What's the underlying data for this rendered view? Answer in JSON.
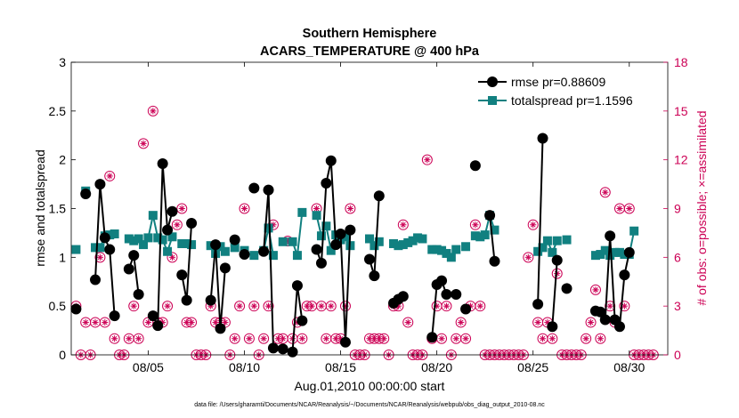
{
  "chart_data": {
    "type": "line",
    "title": [
      "Southern Hemisphere",
      "ACARS_TEMPERATURE @ 400 hPa"
    ],
    "xlabel": "Aug.01,2010 00:00:00 start",
    "ylabel_left": "rmse and totalspread",
    "ylabel_right": "# of obs: o=possible; ×=assimilated",
    "footnote": "data file: /Users/gharamti/Documents/NCAR/Reanalysis/~/Documents/NCAR/Reanalysis/webpub/obs_diag_output_2010-08.nc",
    "xlim": [
      1,
      32
    ],
    "ylim_left": [
      0,
      3
    ],
    "ylim_right": [
      0,
      18
    ],
    "xticks": [
      5,
      10,
      15,
      20,
      25,
      30
    ],
    "xtick_labels": [
      "08/05",
      "08/10",
      "08/15",
      "08/20",
      "08/25",
      "08/30"
    ],
    "yticks_left": [
      "0",
      "0.5",
      "1",
      "1.5",
      "2",
      "2.5",
      "3"
    ],
    "yticks_right": [
      "0",
      "3",
      "6",
      "9",
      "12",
      "15",
      "18"
    ],
    "legend_position": "top-right",
    "colors": {
      "rmse": "#000000",
      "spread": "#118080",
      "obs": "#cc0055"
    },
    "series": [
      {
        "name": "rmse pr=0.88609",
        "x": [
          1.25,
          1.5,
          1.75,
          2.0,
          2.25,
          2.5,
          2.75,
          3.0,
          3.25,
          3.5,
          3.75,
          4.0,
          4.25,
          4.5,
          4.75,
          5.0,
          5.25,
          5.5,
          5.75,
          6.0,
          6.25,
          6.5,
          6.75,
          7.0,
          7.25,
          7.5,
          7.75,
          8.0,
          8.25,
          8.5,
          8.75,
          9.0,
          9.25,
          9.5,
          9.75,
          10.0,
          10.25,
          10.5,
          10.75,
          11.0,
          11.25,
          11.5,
          11.75,
          12.0,
          12.25,
          12.5,
          12.75,
          13.0,
          13.25,
          13.5,
          13.75,
          14.0,
          14.25,
          14.5,
          14.75,
          15.0,
          15.25,
          15.5,
          15.75,
          16.0,
          16.25,
          16.5,
          16.75,
          17.0,
          17.25,
          17.5,
          17.75,
          18.0,
          18.25,
          18.5,
          18.75,
          19.0,
          19.25,
          19.5,
          19.75,
          20.0,
          20.25,
          20.5,
          20.75,
          21.0,
          21.25,
          21.5,
          21.75,
          22.0,
          22.25,
          22.5,
          22.75,
          23.0,
          23.25,
          23.5,
          23.75,
          24.0,
          24.25,
          24.5,
          24.75,
          25.0,
          25.25,
          25.5,
          25.75,
          26.0,
          26.25,
          26.5,
          26.75,
          27.0,
          27.25,
          27.5,
          27.75,
          28.0,
          28.25,
          28.5,
          28.75,
          29.0,
          29.25,
          29.5,
          29.75,
          30.0,
          30.25,
          30.5,
          30.75,
          31.0,
          31.25
        ],
        "y": [
          0.47,
          null,
          1.65,
          null,
          0.77,
          1.75,
          1.2,
          1.08,
          0.4,
          null,
          null,
          0.88,
          1.02,
          0.62,
          null,
          null,
          0.4,
          0.3,
          1.96,
          1.28,
          1.47,
          null,
          0.82,
          0.56,
          1.35,
          null,
          null,
          null,
          0.56,
          1.13,
          0.27,
          0.89,
          null,
          1.18,
          null,
          1.03,
          null,
          1.71,
          null,
          1.06,
          1.69,
          0.07,
          null,
          0.06,
          null,
          0.03,
          0.71,
          0.35,
          null,
          null,
          1.08,
          0.94,
          1.76,
          1.99,
          1.13,
          1.24,
          0.13,
          1.28,
          null,
          null,
          null,
          0.98,
          0.81,
          1.63,
          null,
          null,
          0.53,
          0.57,
          0.6,
          null,
          null,
          null,
          null,
          null,
          0.18,
          0.72,
          0.76,
          0.62,
          null,
          0.62,
          null,
          0.47,
          null,
          1.94,
          null,
          null,
          1.43,
          0.96,
          null,
          null,
          null,
          null,
          null,
          null,
          null,
          null,
          0.52,
          2.22,
          null,
          0.29,
          0.97,
          null,
          0.68,
          null,
          null,
          null,
          null,
          null,
          0.45,
          0.44,
          0.36,
          1.22,
          0.36,
          0.29,
          0.82,
          1.05,
          null,
          null,
          null,
          null,
          null
        ]
      },
      {
        "name": "totalspread pr=1.1596",
        "x": [
          1.25,
          1.5,
          1.75,
          2.0,
          2.25,
          2.5,
          2.75,
          3.0,
          3.25,
          3.5,
          3.75,
          4.0,
          4.25,
          4.5,
          4.75,
          5.0,
          5.25,
          5.5,
          5.75,
          6.0,
          6.25,
          6.5,
          6.75,
          7.0,
          7.25,
          7.5,
          7.75,
          8.0,
          8.25,
          8.5,
          8.75,
          9.0,
          9.25,
          9.5,
          9.75,
          10.0,
          10.25,
          10.5,
          10.75,
          11.0,
          11.25,
          11.5,
          11.75,
          12.0,
          12.25,
          12.5,
          12.75,
          13.0,
          13.25,
          13.5,
          13.75,
          14.0,
          14.25,
          14.5,
          14.75,
          15.0,
          15.25,
          15.5,
          15.75,
          16.0,
          16.25,
          16.5,
          16.75,
          17.0,
          17.25,
          17.5,
          17.75,
          18.0,
          18.25,
          18.5,
          18.75,
          19.0,
          19.25,
          19.5,
          19.75,
          20.0,
          20.25,
          20.5,
          20.75,
          21.0,
          21.25,
          21.5,
          21.75,
          22.0,
          22.25,
          22.5,
          22.75,
          23.0,
          23.25,
          23.5,
          23.75,
          24.0,
          24.25,
          24.5,
          24.75,
          25.0,
          25.25,
          25.5,
          25.75,
          26.0,
          26.25,
          26.5,
          26.75,
          27.0,
          27.25,
          27.5,
          27.75,
          28.0,
          28.25,
          28.5,
          28.75,
          29.0,
          29.25,
          29.5,
          29.75,
          30.0,
          30.25,
          30.5,
          30.75,
          31.0,
          31.25
        ],
        "y": [
          1.08,
          null,
          1.68,
          null,
          1.1,
          1.1,
          1.22,
          1.23,
          1.24,
          null,
          null,
          1.19,
          1.17,
          1.19,
          1.13,
          1.2,
          1.43,
          1.2,
          1.18,
          1.06,
          1.21,
          null,
          1.14,
          1.14,
          1.13,
          null,
          null,
          null,
          1.12,
          1.04,
          1.11,
          1.06,
          null,
          1.1,
          null,
          1.07,
          null,
          1.02,
          null,
          1.07,
          1.3,
          1.02,
          null,
          1.16,
          null,
          1.16,
          1.02,
          1.46,
          null,
          null,
          1.43,
          1.22,
          1.32,
          1.07,
          1.23,
          1.18,
          1.21,
          1.12,
          null,
          null,
          null,
          1.19,
          1.12,
          1.16,
          null,
          null,
          1.14,
          1.12,
          1.13,
          1.15,
          1.17,
          1.2,
          1.19,
          null,
          1.08,
          1.08,
          1.07,
          1.04,
          1.0,
          1.08,
          null,
          1.11,
          null,
          1.22,
          1.21,
          1.23,
          1.43,
          1.28,
          null,
          null,
          null,
          null,
          null,
          null,
          null,
          null,
          1.06,
          1.1,
          1.17,
          1.05,
          1.17,
          null,
          1.18,
          null,
          null,
          null,
          null,
          null,
          1.02,
          1.03,
          1.07,
          1.02,
          1.05,
          1.05,
          1.03,
          1.03,
          1.27,
          null,
          null,
          null,
          null
        ]
      }
    ],
    "obs_counts": {
      "x": [
        1.25,
        1.5,
        1.75,
        2.0,
        2.25,
        2.5,
        2.75,
        3.0,
        3.25,
        3.5,
        3.75,
        4.0,
        4.25,
        4.5,
        4.75,
        5.0,
        5.25,
        5.5,
        5.75,
        6.0,
        6.25,
        6.5,
        6.75,
        7.0,
        7.25,
        7.5,
        7.75,
        8.0,
        8.25,
        8.5,
        8.75,
        9.0,
        9.25,
        9.5,
        9.75,
        10.0,
        10.25,
        10.5,
        10.75,
        11.0,
        11.25,
        11.5,
        11.75,
        12.0,
        12.25,
        12.5,
        12.75,
        13.0,
        13.25,
        13.5,
        13.75,
        14.0,
        14.25,
        14.5,
        14.75,
        15.0,
        15.25,
        15.5,
        15.75,
        16.0,
        16.25,
        16.5,
        16.75,
        17.0,
        17.25,
        17.5,
        17.75,
        18.0,
        18.25,
        18.5,
        18.75,
        19.0,
        19.25,
        19.5,
        19.75,
        20.0,
        20.25,
        20.5,
        20.75,
        21.0,
        21.25,
        21.5,
        21.75,
        22.0,
        22.25,
        22.5,
        22.75,
        23.0,
        23.25,
        23.5,
        23.75,
        24.0,
        24.25,
        24.5,
        24.75,
        25.0,
        25.25,
        25.5,
        25.75,
        26.0,
        26.25,
        26.5,
        26.75,
        27.0,
        27.25,
        27.5,
        27.75,
        28.0,
        28.25,
        28.5,
        28.75,
        29.0,
        29.25,
        29.5,
        29.75,
        30.0,
        30.25,
        30.5,
        30.75,
        31.0,
        31.25
      ],
      "n": [
        3,
        0,
        2,
        0,
        2,
        6,
        2,
        11,
        1,
        0,
        0,
        1,
        3,
        1,
        13,
        2,
        15,
        2,
        2,
        3,
        6,
        8,
        9,
        2,
        2,
        0,
        0,
        0,
        3,
        2,
        2,
        2,
        0,
        1,
        3,
        9,
        1,
        3,
        0,
        1,
        3,
        8,
        1,
        1,
        7,
        1,
        2,
        1,
        3,
        3,
        9,
        3,
        1,
        3,
        1,
        1,
        3,
        9,
        0,
        0,
        0,
        1,
        1,
        1,
        1,
        0,
        3,
        3,
        8,
        2,
        0,
        0,
        0,
        12,
        1,
        3,
        1,
        3,
        0,
        1,
        2,
        1,
        3,
        8,
        3,
        0,
        0,
        0,
        0,
        0,
        0,
        0,
        0,
        0,
        6,
        8,
        2,
        1,
        2,
        1,
        5,
        0,
        0,
        0,
        0,
        0,
        1,
        2,
        4,
        1,
        10,
        3,
        2,
        9,
        3,
        9,
        0,
        0,
        0,
        0,
        0
      ]
    }
  }
}
